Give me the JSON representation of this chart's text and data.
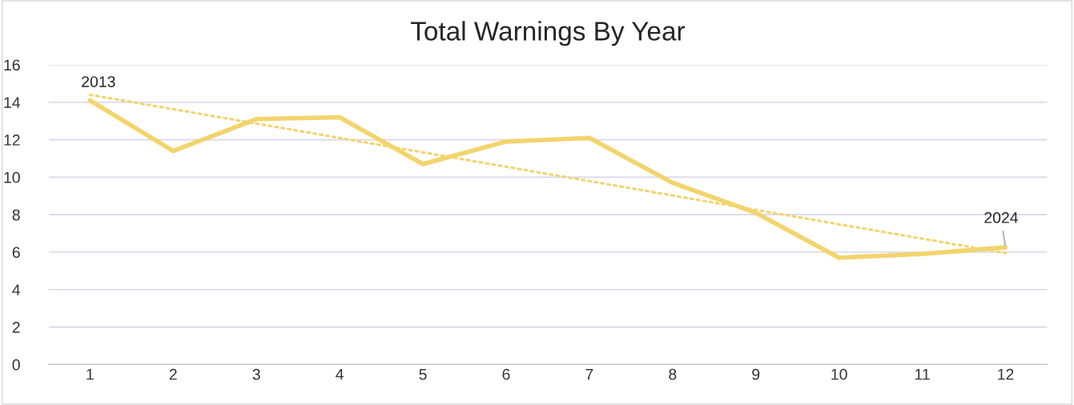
{
  "chart_data": {
    "type": "line",
    "title": "Total Warnings By Year",
    "x": [
      1,
      2,
      3,
      4,
      5,
      6,
      7,
      8,
      9,
      10,
      11,
      12
    ],
    "series": [
      {
        "color": "#f3d46c",
        "values": [
          14.1,
          11.4,
          13.1,
          13.2,
          10.7,
          11.9,
          12.1,
          9.7,
          8.1,
          5.7,
          5.9,
          6.25
        ],
        "line_style": "solid"
      },
      {
        "type": "line",
        "color": "#f3d46c",
        "x": [
          1,
          12
        ],
        "values": [
          14.4,
          5.95
        ],
        "line_style": "dotted"
      }
    ],
    "xlim": [
      0.5,
      12.5
    ],
    "xticks": [
      1,
      2,
      3,
      4,
      5,
      6,
      7,
      8,
      9,
      10,
      11,
      12
    ],
    "ylim": [
      0,
      16
    ],
    "yticks": [
      0,
      2,
      4,
      6,
      8,
      10,
      12,
      14,
      16
    ],
    "grid": "y",
    "marker": "none",
    "annotations": [
      {
        "text": "2013",
        "x": 1,
        "y": 14.1
      },
      {
        "text": "2024",
        "x": 12,
        "y": 6.25
      }
    ]
  }
}
